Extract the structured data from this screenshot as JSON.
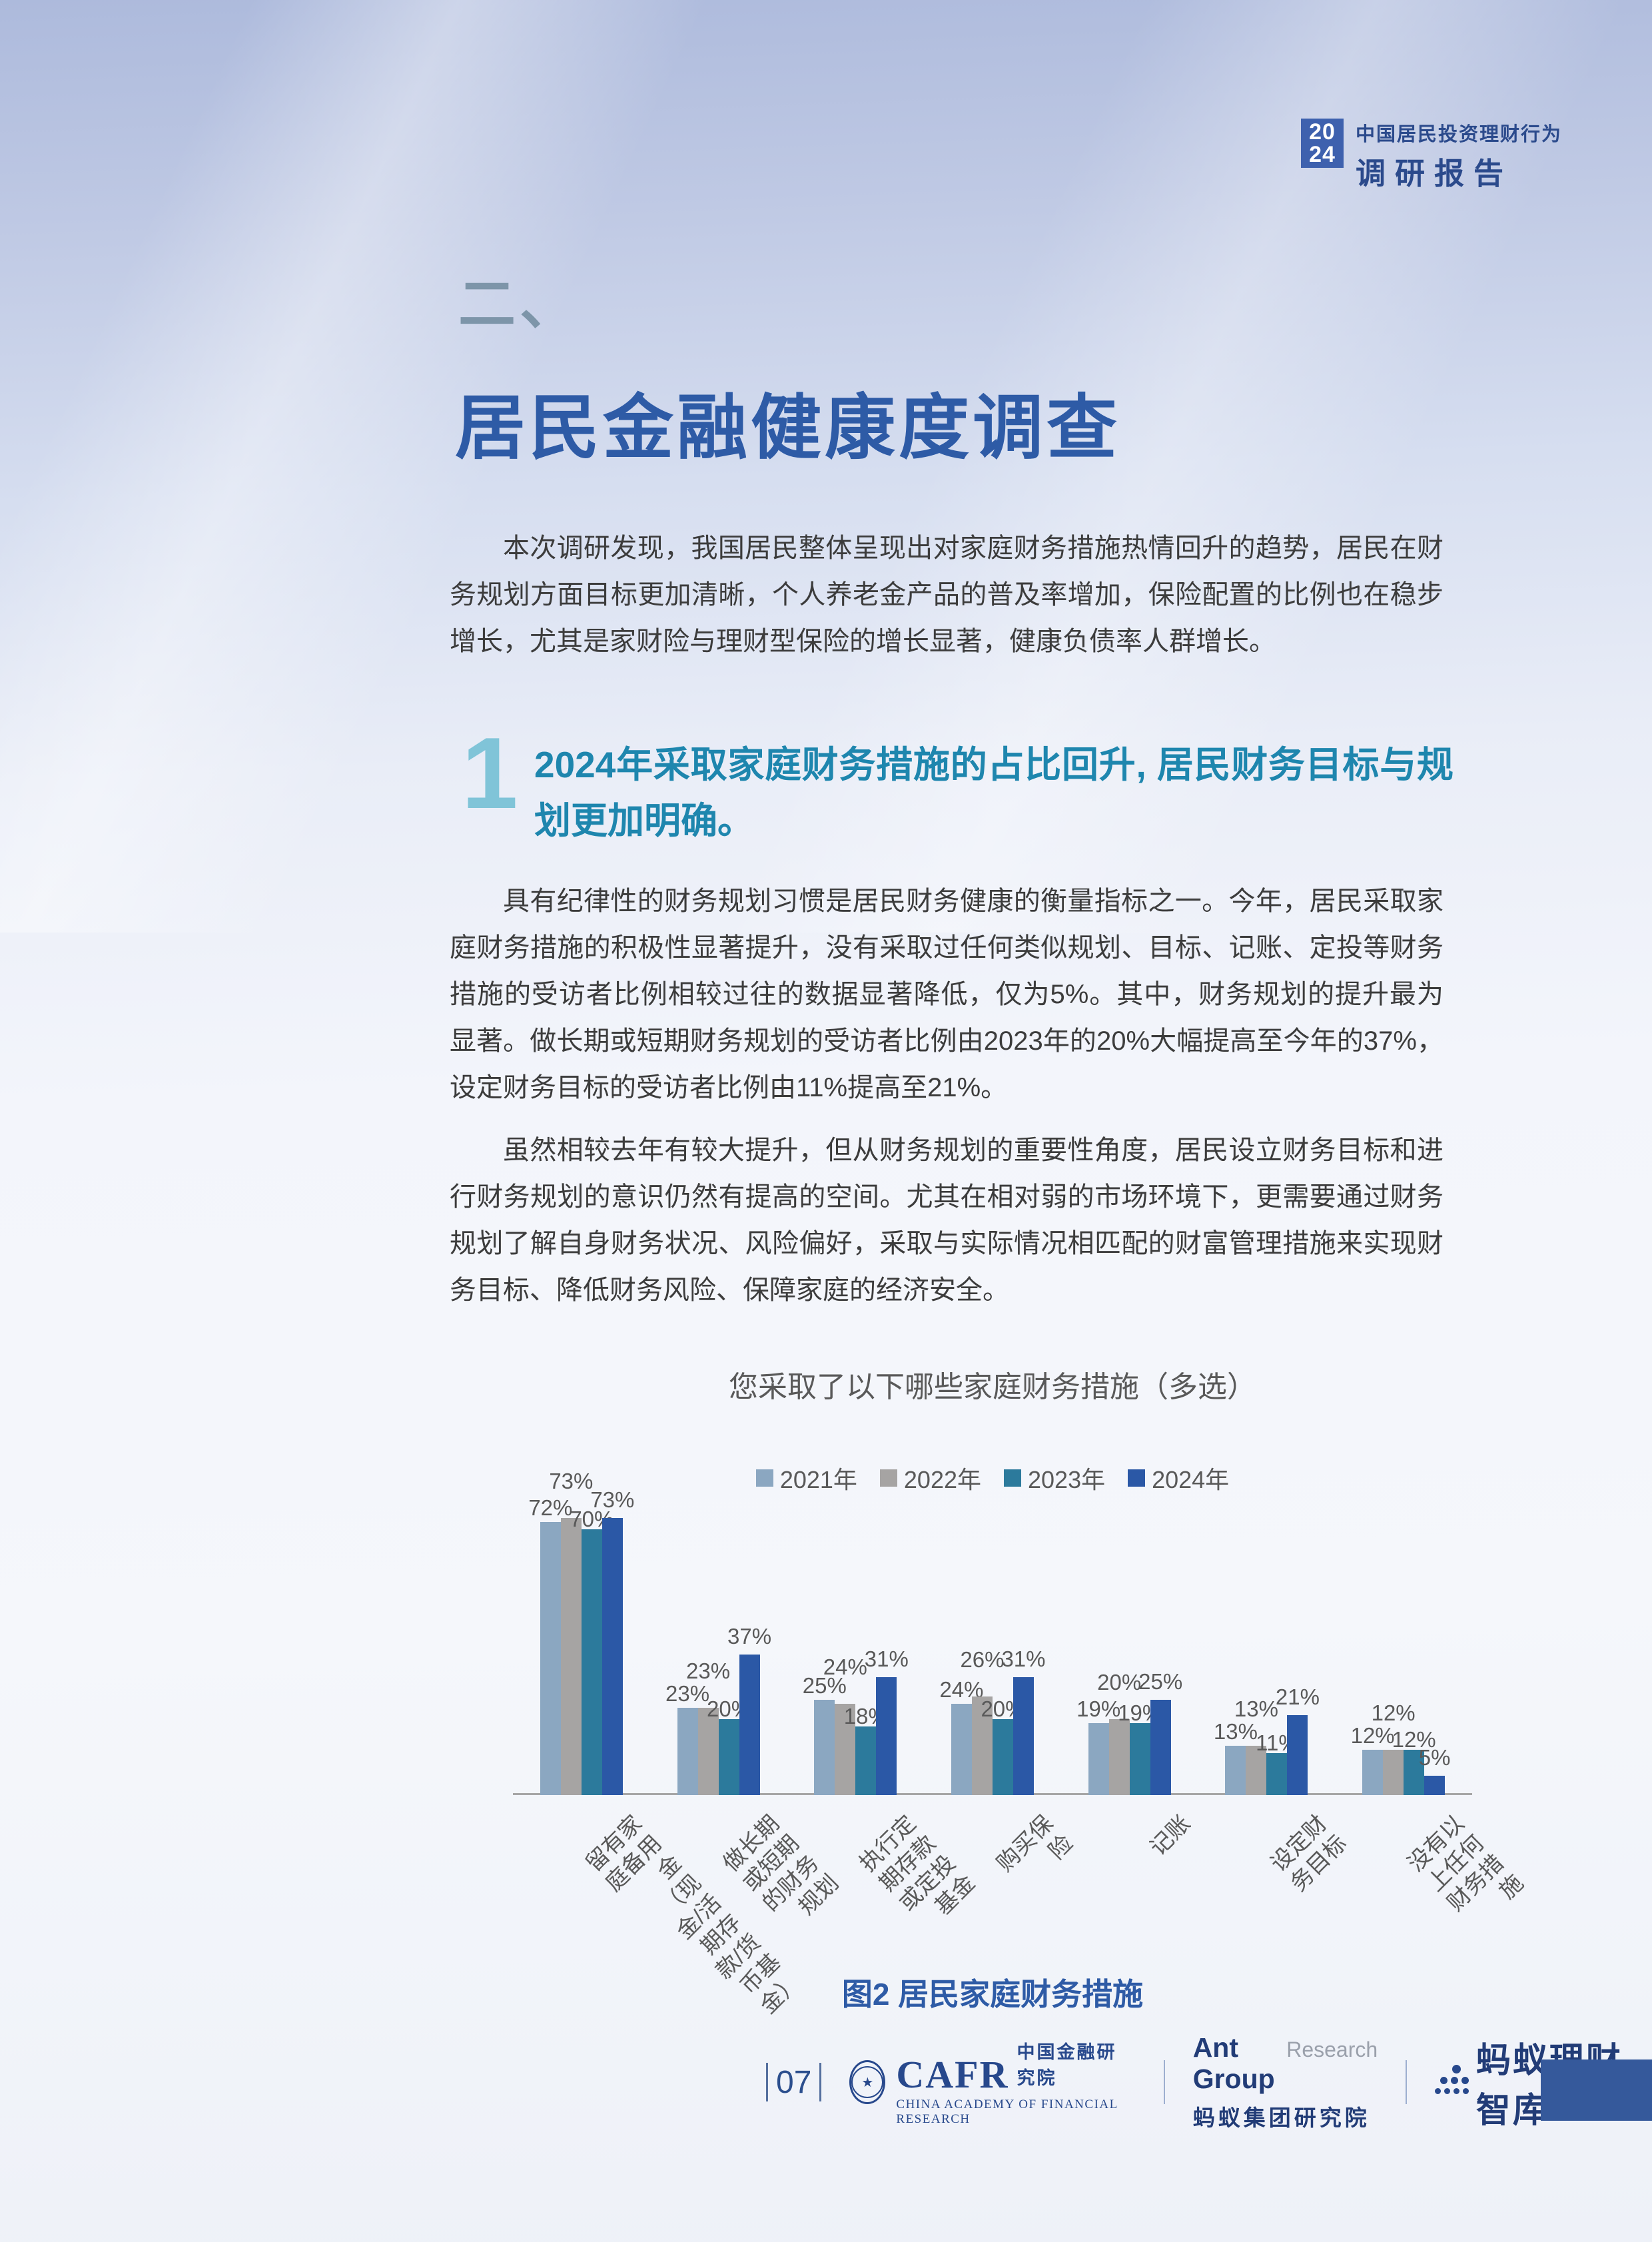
{
  "header": {
    "year_top": "20",
    "year_bottom": "24",
    "subtitle": "中国居民投资理财行为",
    "title": "调研报告"
  },
  "section": {
    "number_label": "二、",
    "title": "居民金融健康度调查"
  },
  "paragraphs": {
    "p1": "本次调研发现，我国居民整体呈现出对家庭财务措施热情回升的趋势，居民在财务规划方面目标更加清晰，个人养老金产品的普及率增加，保险配置的比例也在稳步增长，尤其是家财险与理财型保险的增长显著，健康负债率人群增长。",
    "p2": "具有纪律性的财务规划习惯是居民财务健康的衡量指标之一。今年，居民采取家庭财务措施的积极性显著提升，没有采取过任何类似规划、目标、记账、定投等财务措施的受访者比例相较过往的数据显著降低，仅为5%。其中，财务规划的提升最为显著。做长期或短期财务规划的受访者比例由2023年的20%大幅提高至今年的37%，设定财务目标的受访者比例由11%提高至21%。",
    "p3": "虽然相较去年有较大提升，但从财务规划的重要性角度，居民设立财务目标和进行财务规划的意识仍然有提高的空间。尤其在相对弱的市场环境下，更需要通过财务规划了解自身财务状况、风险偏好，采取与实际情况相匹配的财富管理措施来实现财务目标、降低财务风险、保障家庭的经济安全。"
  },
  "subsection": {
    "index": "1",
    "heading": "2024年采取家庭财务措施的占比回升, 居民财务目标与规划更加明确。"
  },
  "chart_data": {
    "type": "bar",
    "title": "您采取了以下哪些家庭财务措施（多选）",
    "categories": [
      "留有家庭备用金\n（现金/活期存款/货币基金）",
      "做长期或短期的财务规划",
      "执行定期存款或定投基金",
      "购买保险",
      "记账",
      "设定财务目标",
      "没有以上任何财务措施"
    ],
    "series": [
      {
        "name": "2021年",
        "color": "#8ba7c1",
        "values": [
          72,
          23,
          25,
          24,
          19,
          13,
          12
        ]
      },
      {
        "name": "2022年",
        "color": "#a6a4a3",
        "values": [
          73,
          23,
          24,
          26,
          20,
          13,
          12
        ]
      },
      {
        "name": "2023年",
        "color": "#2c7a9c",
        "values": [
          70,
          20,
          18,
          20,
          19,
          11,
          12
        ]
      },
      {
        "name": "2024年",
        "color": "#2b58a6",
        "values": [
          73,
          37,
          31,
          31,
          25,
          21,
          5
        ]
      }
    ],
    "value_suffix": "%",
    "ylim": [
      0,
      80
    ],
    "grid": false,
    "legend_position": "top",
    "axis_line_color": "#a6a6a6"
  },
  "caption": "图2 居民家庭财务措施",
  "footer": {
    "page_number": "07",
    "cafr_acronym": "CAFR",
    "cafr_cn": "中国金融研究院",
    "cafr_en": "CHINA ACADEMY OF FINANCIAL RESEARCH",
    "ant_group_en": "Ant Group",
    "ant_research_en": "Research",
    "ant_group_cn": "蚂蚁集团研究院",
    "brand_name": "蚂蚁理财智库"
  }
}
